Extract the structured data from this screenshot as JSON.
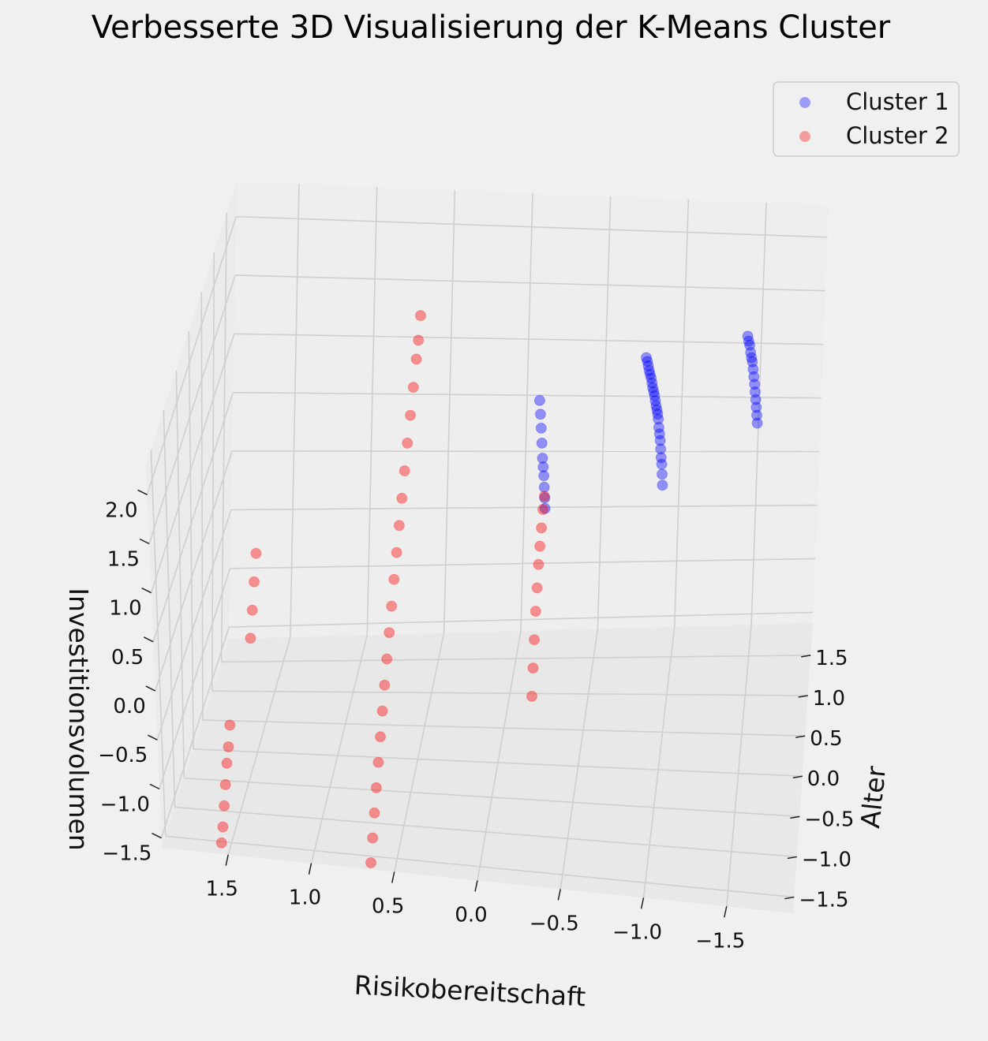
{
  "chart_data": {
    "type": "scatter",
    "title": "Verbesserte 3D Visualisierung der K-Means Cluster",
    "xlabel": "Risikobereitschaft",
    "ylabel": "Alter",
    "zlabel": "Investitionsvolumen",
    "xlim": [
      -1.9,
      1.9
    ],
    "ylim": [
      -1.7,
      1.9
    ],
    "zlim": [
      -1.6,
      2.3
    ],
    "x_ticks": [
      "1.5",
      "1.0",
      "0.5",
      "0.0",
      "−0.5",
      "−1.0",
      "−1.5"
    ],
    "y_ticks": [
      "1.5",
      "1.0",
      "0.5",
      "0.0",
      "−0.5",
      "−1.0",
      "−1.5"
    ],
    "z_ticks": [
      "2.0",
      "1.5",
      "1.0",
      "0.5",
      "0.0",
      "−0.5",
      "−1.0",
      "−1.5"
    ],
    "legend_position": "top-right",
    "grid": true,
    "series": [
      {
        "name": "Cluster 1",
        "color": "#0000ff",
        "points": [
          [
            -1.5,
            1.72,
            0.4
          ],
          [
            -1.5,
            1.62,
            0.55
          ],
          [
            -1.5,
            1.52,
            0.7
          ],
          [
            -1.5,
            1.42,
            0.85
          ],
          [
            -1.5,
            1.32,
            1.0
          ],
          [
            -1.5,
            1.22,
            1.15
          ],
          [
            -1.5,
            1.12,
            1.3
          ],
          [
            -1.5,
            1.02,
            1.45
          ],
          [
            -1.5,
            0.92,
            1.6
          ],
          [
            -1.5,
            0.82,
            1.72
          ],
          [
            -1.5,
            0.72,
            1.85
          ],
          [
            -1.5,
            0.62,
            2.0
          ],
          [
            -1.5,
            0.52,
            2.12
          ],
          [
            -1.5,
            0.42,
            2.25
          ],
          [
            -0.9,
            1.75,
            -0.2
          ],
          [
            -0.9,
            1.68,
            -0.05
          ],
          [
            -0.9,
            1.6,
            0.1
          ],
          [
            -0.9,
            1.52,
            0.22
          ],
          [
            -0.9,
            1.45,
            0.35
          ],
          [
            -0.9,
            1.38,
            0.48
          ],
          [
            -0.9,
            1.3,
            0.6
          ],
          [
            -0.9,
            1.22,
            0.72
          ],
          [
            -0.9,
            1.15,
            0.85
          ],
          [
            -0.9,
            1.08,
            0.95
          ],
          [
            -0.9,
            1.0,
            1.05
          ],
          [
            -0.9,
            0.92,
            1.15
          ],
          [
            -0.9,
            0.85,
            1.25
          ],
          [
            -0.9,
            0.78,
            1.35
          ],
          [
            -0.9,
            0.7,
            1.45
          ],
          [
            -0.9,
            0.62,
            1.55
          ],
          [
            -0.9,
            0.55,
            1.65
          ],
          [
            -0.9,
            0.48,
            1.75
          ],
          [
            -0.9,
            0.4,
            1.85
          ],
          [
            -0.9,
            0.32,
            1.95
          ],
          [
            -0.9,
            0.25,
            2.05
          ],
          [
            -0.9,
            0.18,
            2.15
          ],
          [
            -0.9,
            0.1,
            2.25
          ],
          [
            -0.25,
            0.45,
            0.5
          ],
          [
            -0.25,
            0.42,
            0.62
          ],
          [
            -0.25,
            0.38,
            0.75
          ],
          [
            -0.25,
            0.35,
            0.88
          ],
          [
            -0.25,
            0.3,
            1.0
          ],
          [
            -0.25,
            0.25,
            1.12
          ],
          [
            -0.25,
            0.2,
            1.3
          ],
          [
            -0.25,
            0.15,
            1.48
          ],
          [
            -0.25,
            0.1,
            1.65
          ],
          [
            -0.25,
            0.05,
            1.82
          ]
        ]
      },
      {
        "name": "Cluster 2",
        "color": "#ff0000",
        "points": [
          [
            -0.25,
            -0.5,
            -0.6
          ],
          [
            -0.25,
            -0.4,
            -0.4
          ],
          [
            -0.25,
            -0.3,
            -0.2
          ],
          [
            -0.25,
            -0.2,
            0.0
          ],
          [
            -0.25,
            -0.1,
            0.15
          ],
          [
            -0.25,
            0.0,
            0.3
          ],
          [
            -0.25,
            0.1,
            0.4
          ],
          [
            -0.25,
            0.2,
            0.5
          ],
          [
            -0.25,
            0.3,
            0.6
          ],
          [
            -0.25,
            0.4,
            0.65
          ],
          [
            0.65,
            -1.6,
            -1.6
          ],
          [
            0.65,
            -1.45,
            -1.45
          ],
          [
            0.65,
            -1.3,
            -1.3
          ],
          [
            0.65,
            -1.15,
            -1.15
          ],
          [
            0.65,
            -1.0,
            -1.0
          ],
          [
            0.65,
            -0.85,
            -0.85
          ],
          [
            0.65,
            -0.7,
            -0.7
          ],
          [
            0.65,
            -0.55,
            -0.55
          ],
          [
            0.65,
            -0.4,
            -0.4
          ],
          [
            0.65,
            -0.25,
            -0.25
          ],
          [
            0.65,
            -0.1,
            -0.1
          ],
          [
            0.65,
            0.05,
            0.05
          ],
          [
            0.65,
            0.2,
            0.2
          ],
          [
            0.65,
            0.35,
            0.35
          ],
          [
            0.65,
            0.5,
            0.5
          ],
          [
            0.65,
            0.65,
            0.65
          ],
          [
            0.65,
            0.8,
            0.8
          ],
          [
            0.65,
            0.95,
            0.95
          ],
          [
            0.65,
            1.1,
            1.1
          ],
          [
            0.65,
            1.25,
            1.25
          ],
          [
            0.65,
            1.35,
            1.35
          ],
          [
            0.65,
            1.45,
            1.5
          ],
          [
            1.55,
            -1.6,
            -1.55
          ],
          [
            1.55,
            -1.5,
            -1.45
          ],
          [
            1.55,
            -1.4,
            -1.3
          ],
          [
            1.55,
            -1.3,
            -1.15
          ],
          [
            1.55,
            -1.2,
            -1.0
          ],
          [
            1.55,
            -1.1,
            -0.9
          ],
          [
            1.55,
            -1.0,
            -0.75
          ],
          [
            1.55,
            0.1,
            -0.6
          ],
          [
            1.55,
            0.2,
            -0.4
          ],
          [
            1.55,
            0.3,
            -0.2
          ],
          [
            1.55,
            0.4,
            0.0
          ]
        ]
      }
    ]
  }
}
